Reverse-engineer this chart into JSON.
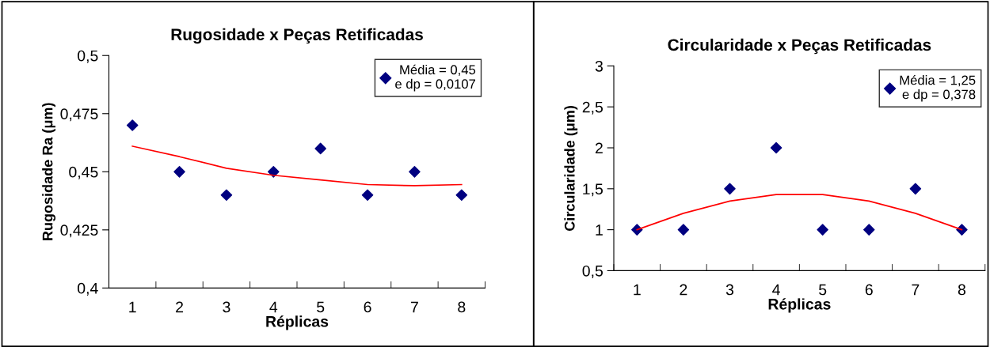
{
  "chart_data": [
    {
      "type": "scatter",
      "title": "Rugosidade x Peças Retificadas",
      "xlabel": "Réplicas",
      "ylabel": "Rugosidade Ra (μm)",
      "categories": [
        "1",
        "2",
        "3",
        "4",
        "5",
        "6",
        "7",
        "8"
      ],
      "series": [
        {
          "name": "Média = 0,45\ne dp = 0,0107",
          "color": "#000080",
          "marker": "diamond",
          "values": [
            0.47,
            0.45,
            0.44,
            0.45,
            0.46,
            0.44,
            0.45,
            0.44
          ]
        },
        {
          "type": "line",
          "color": "#ff0000",
          "values": [
            0.461,
            0.4565,
            0.4515,
            0.4485,
            0.4465,
            0.4445,
            0.444,
            0.4445
          ]
        }
      ],
      "ylim": [
        0.4,
        0.5
      ],
      "yticks": [
        {
          "value": 0.4,
          "label": "0,4"
        },
        {
          "value": 0.425,
          "label": "0,425"
        },
        {
          "value": 0.45,
          "label": "0,45"
        },
        {
          "value": 0.475,
          "label": "0,475"
        },
        {
          "value": 0.5,
          "label": "0,5"
        }
      ],
      "grid": false,
      "legend": "top right"
    },
    {
      "type": "scatter",
      "title": "Circularidade x Peças Retificadas",
      "xlabel": "Réplicas",
      "ylabel": "Circularidade (μm)",
      "categories": [
        "1",
        "2",
        "3",
        "4",
        "5",
        "6",
        "7",
        "8"
      ],
      "series": [
        {
          "name": "Média = 1,25\ne dp = 0,378",
          "color": "#000080",
          "marker": "diamond",
          "values": [
            1,
            1,
            1.5,
            2,
            1,
            1,
            1.5,
            1
          ]
        },
        {
          "type": "line",
          "color": "#ff0000",
          "values": [
            1.0,
            1.2,
            1.35,
            1.43,
            1.43,
            1.35,
            1.2,
            1.0
          ]
        }
      ],
      "ylim": [
        0.5,
        3
      ],
      "yticks": [
        {
          "value": 0.5,
          "label": "0,5"
        },
        1,
        {
          "value": 1.5,
          "label": "1,5"
        },
        2,
        {
          "value": 2.5,
          "label": "2,5"
        },
        3
      ],
      "grid": false,
      "legend": "top right"
    }
  ]
}
